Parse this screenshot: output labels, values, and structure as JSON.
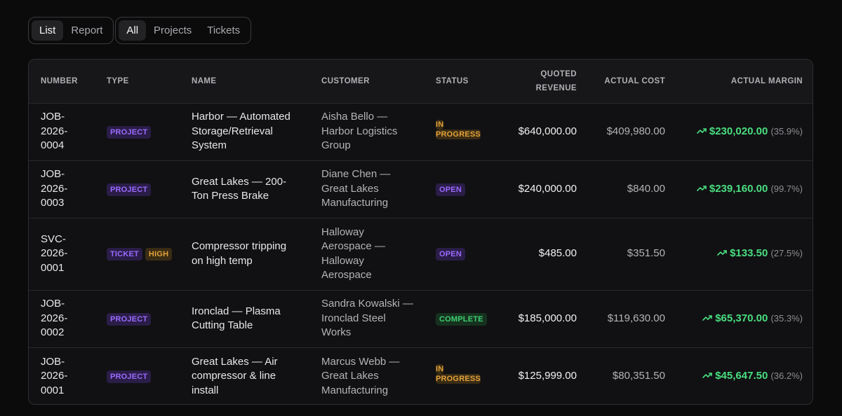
{
  "toolbar": {
    "view_tabs": [
      "List",
      "Report"
    ],
    "filter_tabs": [
      "All",
      "Projects",
      "Tickets"
    ]
  },
  "table": {
    "headers": {
      "number": "NUMBER",
      "type": "TYPE",
      "name": "NAME",
      "customer": "CUSTOMER",
      "status": "STATUS",
      "quoted_revenue_1": "QUOTED",
      "quoted_revenue_2": "REVENUE",
      "actual_cost": "ACTUAL COST",
      "actual_margin": "ACTUAL MARGIN"
    },
    "rows": [
      {
        "number": [
          "JOB-",
          "2026-",
          "0004"
        ],
        "types": [
          "PROJECT"
        ],
        "name": [
          "Harbor — Automated",
          "Storage/Retrieval",
          "System"
        ],
        "customer": [
          "Aisha Bello —",
          "Harbor Logistics",
          "Group"
        ],
        "status": [
          "IN",
          "PROGRESS"
        ],
        "revenue": "$640,000.00",
        "cost": "$409,980.00",
        "margin": "$230,020.00",
        "margin_pct": "(35.9%)"
      },
      {
        "number": [
          "JOB-",
          "2026-",
          "0003"
        ],
        "types": [
          "PROJECT"
        ],
        "name": [
          "Great Lakes — 200-",
          "Ton Press Brake"
        ],
        "customer": [
          "Diane Chen —",
          "Great Lakes",
          "Manufacturing"
        ],
        "status": [
          "OPEN"
        ],
        "revenue": "$240,000.00",
        "cost": "$840.00",
        "margin": "$239,160.00",
        "margin_pct": "(99.7%)"
      },
      {
        "number": [
          "SVC-",
          "2026-",
          "0001"
        ],
        "types": [
          "TICKET",
          "HIGH"
        ],
        "name": [
          "Compressor tripping",
          "on high temp"
        ],
        "customer": [
          "Halloway",
          "Aerospace —",
          "Halloway",
          "Aerospace"
        ],
        "status": [
          "OPEN"
        ],
        "revenue": "$485.00",
        "cost": "$351.50",
        "margin": "$133.50",
        "margin_pct": "(27.5%)"
      },
      {
        "number": [
          "JOB-",
          "2026-",
          "0002"
        ],
        "types": [
          "PROJECT"
        ],
        "name": [
          "Ironclad — Plasma",
          "Cutting Table"
        ],
        "customer": [
          "Sandra Kowalski —",
          "Ironclad Steel",
          "Works"
        ],
        "status": [
          "COMPLETE"
        ],
        "revenue": "$185,000.00",
        "cost": "$119,630.00",
        "margin": "$65,370.00",
        "margin_pct": "(35.3%)"
      },
      {
        "number": [
          "JOB-",
          "2026-",
          "0001"
        ],
        "types": [
          "PROJECT"
        ],
        "name": [
          "Great Lakes — Air",
          "compressor & line",
          "install"
        ],
        "customer": [
          "Marcus Webb —",
          "Great Lakes",
          "Manufacturing"
        ],
        "status": [
          "IN",
          "PROGRESS"
        ],
        "revenue": "$125,999.00",
        "cost": "$80,351.50",
        "margin": "$45,647.50",
        "margin_pct": "(36.2%)"
      }
    ]
  },
  "colors": {
    "positive": "#4ade80",
    "purple_badge": "#9b6bff",
    "orange_badge": "#e3a23a",
    "green_badge": "#3fcf72"
  },
  "icons": {
    "margin_trend": "trending-up-icon"
  }
}
